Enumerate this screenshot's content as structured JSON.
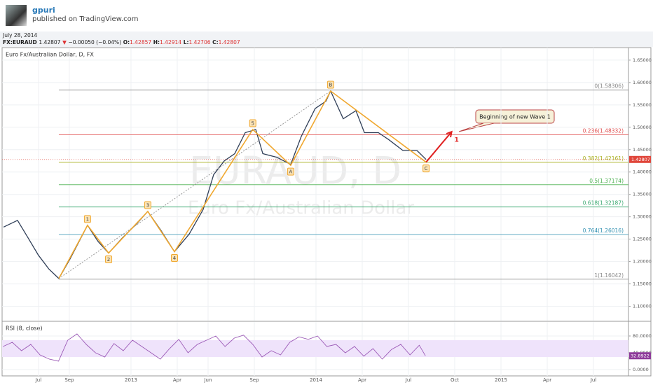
{
  "header": {
    "author": "gpuri",
    "published": "published on TradingView.com",
    "date": "July 28, 2014",
    "symbol": "FX:EURAUD",
    "last": "1.42807",
    "change": "−0.00050 (−0.04%)",
    "o_label": "O:",
    "open": "1.42857",
    "h_label": "H:",
    "high": "1.42914",
    "l_label": "L:",
    "low": "1.42706",
    "c_label": "C:",
    "close": "1.42807"
  },
  "chart_data": [
    {
      "type": "line",
      "title": "Euro Fx/Australian Dollar, D, FX",
      "watermark": "EURAUD, D",
      "watermark_sub": "Euro Fx/Australian Dollar",
      "color": "#2f3e57",
      "x": [
        3.73,
        4.64,
        5.32,
        6.0,
        6.68,
        7.32,
        8.05,
        9.18,
        9.86,
        10.55,
        11.45,
        12.36,
        13.09,
        13.95,
        14.82,
        15.77,
        16.68,
        17.36,
        18.05,
        18.73,
        19.41,
        20.09,
        20.55,
        21.45,
        22.36,
        23.05,
        23.95,
        24.64,
        24.95,
        25.77,
        26.59,
        27.14,
        28.05,
        28.73,
        29.64,
        30.55,
        31.14
      ],
      "values": [
        1.277,
        1.292,
        1.253,
        1.214,
        1.183,
        1.162,
        1.206,
        1.281,
        1.245,
        1.219,
        1.253,
        1.284,
        1.312,
        1.269,
        1.222,
        1.261,
        1.316,
        1.394,
        1.425,
        1.441,
        1.488,
        1.495,
        1.441,
        1.433,
        1.417,
        1.48,
        1.542,
        1.558,
        1.581,
        1.519,
        1.537,
        1.488,
        1.488,
        1.472,
        1.448,
        1.448,
        1.428
      ],
      "xlim": [
        3.64,
        44.27
      ],
      "ylim": [
        1.068,
        1.678
      ],
      "yticks": [
        {
          "value": 1.1,
          "label": "1.10000"
        },
        {
          "value": 1.15,
          "label": "1.15000"
        },
        {
          "value": 1.2,
          "label": "1.20000"
        },
        {
          "value": 1.25,
          "label": "1.25000"
        },
        {
          "value": 1.3,
          "label": "1.30000"
        },
        {
          "value": 1.35,
          "label": "1.35000"
        },
        {
          "value": 1.4,
          "label": "1.40000"
        },
        {
          "value": 1.45,
          "label": "1.45000"
        },
        {
          "value": 1.5,
          "label": "1.50000"
        },
        {
          "value": 1.55,
          "label": "1.55000"
        },
        {
          "value": 1.6,
          "label": "1.60000"
        },
        {
          "value": 1.65,
          "label": "1.65000"
        }
      ],
      "last_price": 1.42807,
      "last_price_color": "#e0453a",
      "fib_levels": [
        {
          "label": "0(1.58306)",
          "price": 1.58306,
          "color": "#888888"
        },
        {
          "label": "0.236(1.48332)",
          "price": 1.48332,
          "color": "#e05050"
        },
        {
          "label": "0.382(1.42161)",
          "price": 1.42161,
          "color": "#a8b020"
        },
        {
          "label": "0.5(1.37174)",
          "price": 1.37174,
          "color": "#4cb050"
        },
        {
          "label": "0.618(1.32187)",
          "price": 1.32187,
          "color": "#3aa870"
        },
        {
          "label": "0.764(1.26016)",
          "price": 1.26016,
          "color": "#2f8fb0"
        },
        {
          "label": "1(1.16042)",
          "price": 1.16042,
          "color": "#888888"
        }
      ],
      "wave_start": {
        "x": 7.32,
        "price": 1.162
      },
      "wave_color": "#f0a830",
      "waves": [
        {
          "label": "1",
          "x": 9.18,
          "price": 1.281,
          "position": "above"
        },
        {
          "label": "2",
          "x": 10.55,
          "price": 1.219,
          "position": "below"
        },
        {
          "label": "3",
          "x": 13.09,
          "price": 1.312,
          "position": "above"
        },
        {
          "label": "4",
          "x": 14.82,
          "price": 1.222,
          "position": "below"
        },
        {
          "label": "5",
          "x": 19.9,
          "price": 1.495,
          "position": "above"
        },
        {
          "label": "A",
          "x": 22.36,
          "price": 1.415,
          "position": "below"
        },
        {
          "label": "B",
          "x": 24.95,
          "price": 1.581,
          "position": "above"
        },
        {
          "label": "C",
          "x": 31.14,
          "price": 1.422,
          "position": "below"
        }
      ],
      "arrow": {
        "label": "1",
        "x": 32.8,
        "price": 1.49,
        "color": "#e02020"
      },
      "callout": "Beginning of new Wave 1"
    },
    {
      "type": "line",
      "title": "RSI (8, close)",
      "color": "#9b59b6",
      "band": [
        30,
        70
      ],
      "x": [
        3.7,
        4.3,
        4.9,
        5.5,
        6.1,
        6.7,
        7.3,
        7.9,
        8.5,
        9.1,
        9.7,
        10.3,
        10.9,
        11.5,
        12.1,
        12.7,
        13.3,
        13.9,
        14.5,
        15.1,
        15.7,
        16.3,
        16.9,
        17.5,
        18.1,
        18.7,
        19.3,
        19.9,
        20.5,
        21.1,
        21.7,
        22.3,
        22.9,
        23.5,
        24.1,
        24.7,
        25.3,
        25.9,
        26.5,
        27.1,
        27.7,
        28.3,
        28.9,
        29.5,
        30.1,
        30.7,
        31.1
      ],
      "values": [
        55,
        65,
        45,
        60,
        35,
        25,
        20,
        70,
        85,
        60,
        40,
        30,
        62,
        45,
        70,
        55,
        40,
        25,
        50,
        72,
        40,
        60,
        70,
        80,
        55,
        75,
        82,
        60,
        30,
        45,
        35,
        65,
        78,
        72,
        80,
        55,
        60,
        40,
        55,
        32,
        50,
        25,
        48,
        60,
        35,
        58,
        32.8922
      ],
      "xlim": [
        3.64,
        44.27
      ],
      "ylim": [
        -15,
        113.3
      ],
      "yticks": [
        {
          "value": 0,
          "label": "0.0000"
        },
        {
          "value": 40,
          "label": "40.0000"
        },
        {
          "value": 80,
          "label": "80.0000"
        }
      ],
      "xticks": [
        {
          "value": 6,
          "label": "Jul"
        },
        {
          "value": 8,
          "label": "Sep"
        },
        {
          "value": 12,
          "label": "2013"
        },
        {
          "value": 15,
          "label": "Apr"
        },
        {
          "value": 17,
          "label": "Jun"
        },
        {
          "value": 20,
          "label": "Sep"
        },
        {
          "value": 24,
          "label": "2014"
        },
        {
          "value": 27,
          "label": "Apr"
        },
        {
          "value": 30,
          "label": "Jul"
        },
        {
          "value": 33,
          "label": "Oct"
        },
        {
          "value": 36,
          "label": "2015"
        },
        {
          "value": 39,
          "label": "Apr"
        },
        {
          "value": 42,
          "label": "Jul"
        }
      ]
    }
  ]
}
